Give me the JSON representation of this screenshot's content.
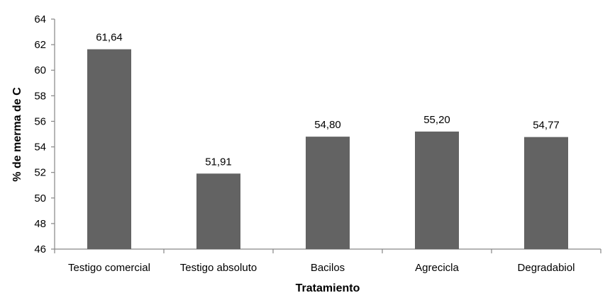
{
  "chart_data": {
    "type": "bar",
    "categories": [
      "Testigo comercial",
      "Testigo absoluto",
      "Bacilos",
      "Agrecicla",
      "Degradabiol"
    ],
    "values": [
      61.64,
      51.91,
      54.8,
      55.2,
      54.77
    ],
    "data_labels": [
      "61,64",
      "51,91",
      "54,80",
      "55,20",
      "54,77"
    ],
    "xlabel": "Tratamiento",
    "ylabel": "% de merma de C",
    "ylim": [
      46,
      64
    ],
    "yticks": [
      46,
      48,
      50,
      52,
      54,
      56,
      58,
      60,
      62,
      64
    ],
    "grid": false,
    "legend": "none",
    "bar_color": "#636363",
    "axis_color": "#868686"
  }
}
